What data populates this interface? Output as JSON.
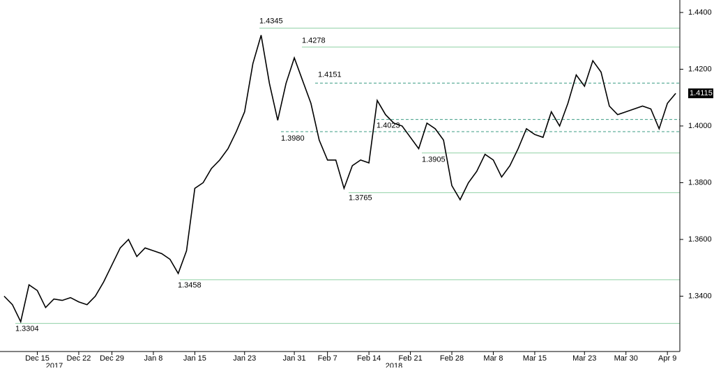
{
  "chart_data": {
    "type": "line",
    "categories": [
      null,
      null,
      null,
      null,
      "Dec 15",
      null,
      null,
      null,
      null,
      "Dec 22",
      null,
      null,
      null,
      "Dec 29",
      null,
      null,
      null,
      null,
      "Jan 8",
      null,
      null,
      null,
      null,
      "Jan 15",
      null,
      null,
      null,
      null,
      null,
      "Jan 23",
      null,
      null,
      null,
      null,
      null,
      "Jan 31",
      null,
      null,
      null,
      "Feb 7",
      null,
      null,
      null,
      null,
      "Feb 14",
      null,
      null,
      null,
      null,
      "Feb 21",
      null,
      null,
      null,
      null,
      "Feb 28",
      null,
      null,
      null,
      null,
      "Mar 8",
      null,
      null,
      null,
      null,
      "Mar 15",
      null,
      null,
      null,
      null,
      null,
      "Mar 23",
      null,
      null,
      null,
      null,
      "Mar 30",
      null,
      null,
      null,
      null,
      "Apr 9",
      null
    ],
    "series": [
      {
        "color": "#000000",
        "values": [
          1.34,
          1.337,
          1.331,
          1.344,
          1.342,
          1.336,
          1.339,
          1.3385,
          1.3395,
          1.338,
          1.337,
          1.34,
          1.345,
          1.351,
          1.357,
          1.36,
          1.354,
          1.357,
          1.356,
          1.355,
          1.353,
          1.348,
          1.356,
          1.378,
          1.38,
          1.385,
          1.388,
          1.392,
          1.398,
          1.405,
          1.422,
          1.432,
          1.415,
          1.402,
          1.415,
          1.424,
          1.416,
          1.408,
          1.395,
          1.388,
          1.388,
          1.378,
          1.386,
          1.388,
          1.387,
          1.409,
          1.404,
          1.401,
          1.4,
          1.396,
          1.392,
          1.401,
          1.399,
          1.395,
          1.379,
          1.374,
          1.38,
          1.384,
          1.39,
          1.388,
          1.382,
          1.386,
          1.392,
          1.399,
          1.397,
          1.396,
          1.405,
          1.4,
          1.408,
          1.418,
          1.414,
          1.423,
          1.419,
          1.407,
          1.404,
          1.405,
          1.406,
          1.407,
          1.406,
          1.399,
          1.408,
          1.4115
        ]
      }
    ],
    "year_labels": [
      "2017",
      "2018"
    ],
    "levels": [
      {
        "value": 1.4345,
        "label": "1.4345",
        "style": "solid"
      },
      {
        "value": 1.4278,
        "label": "1.4278",
        "style": "solid"
      },
      {
        "value": 1.4151,
        "label": "1.4151",
        "style": "dashed"
      },
      {
        "value": 1.4023,
        "label": "1.4023",
        "style": "dashed"
      },
      {
        "value": 1.398,
        "label": "1.3980",
        "style": "dashed"
      },
      {
        "value": 1.3905,
        "label": "1.3905",
        "style": "solid"
      },
      {
        "value": 1.3765,
        "label": "1.3765",
        "style": "solid"
      },
      {
        "value": 1.3458,
        "label": "1.3458",
        "style": "solid"
      },
      {
        "value": 1.3304,
        "label": "1.3304",
        "style": "solid"
      }
    ],
    "last_label": {
      "value": 1.4115,
      "label": "1.4115"
    },
    "ylim": [
      1.3205,
      1.4444
    ],
    "yticks": [
      {
        "value": 1.34,
        "label": "1.3400"
      },
      {
        "value": 1.36,
        "label": "1.3600"
      },
      {
        "value": 1.38,
        "label": "1.3800"
      },
      {
        "value": 1.4,
        "label": "1.4000"
      },
      {
        "value": 1.42,
        "label": "1.4200"
      },
      {
        "value": 1.44,
        "label": "1.4400"
      }
    ],
    "grid": false
  }
}
